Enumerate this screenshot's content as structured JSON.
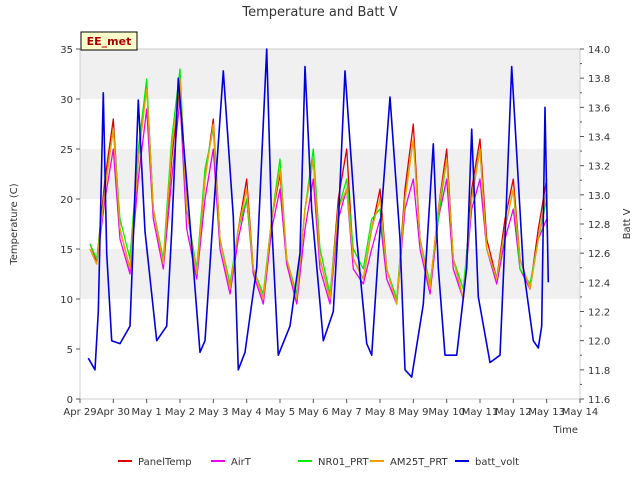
{
  "chart_data": {
    "type": "line",
    "title": "Temperature and Batt V",
    "xlabel": "Time",
    "ylabel": "Temperature (C)",
    "y2label": "Batt V",
    "station_tag": "EE_met",
    "x_ticks": [
      "Apr 29",
      "Apr 30",
      "May 1",
      "May 2",
      "May 3",
      "May 4",
      "May 5",
      "May 6",
      "May 7",
      "May 8",
      "May 9",
      "May 10",
      "May 11",
      "May 12",
      "May 13",
      "May 14"
    ],
    "xlim": [
      0,
      15
    ],
    "ylim": [
      0,
      35
    ],
    "y_ticks": [
      0,
      5,
      10,
      15,
      20,
      25,
      30,
      35
    ],
    "y2lim": [
      11.6,
      14.0
    ],
    "y2_ticks": [
      "11.6",
      "11.8",
      "12.0",
      "12.2",
      "12.4",
      "12.6",
      "12.8",
      "13.0",
      "13.2",
      "13.4",
      "13.6",
      "13.8",
      "14.0"
    ],
    "grid": "horizontal bands",
    "legend_position": "bottom",
    "series": [
      {
        "name": "PanelTemp",
        "color": "#dd0000",
        "axis": "left",
        "x": [
          0.3,
          0.5,
          0.75,
          1.0,
          1.2,
          1.5,
          1.75,
          2.0,
          2.2,
          2.5,
          2.75,
          3.0,
          3.2,
          3.5,
          3.75,
          4.0,
          4.2,
          4.5,
          4.75,
          5.0,
          5.2,
          5.5,
          5.75,
          6.0,
          6.2,
          6.5,
          6.75,
          7.0,
          7.2,
          7.5,
          7.75,
          8.0,
          8.2,
          8.5,
          8.75,
          9.0,
          9.2,
          9.5,
          9.75,
          10.0,
          10.2,
          10.5,
          10.75,
          11.0,
          11.2,
          11.5,
          11.75,
          12.0,
          12.2,
          12.5,
          12.75,
          13.0,
          13.2,
          13.5,
          13.75,
          14.0
        ],
        "y": [
          15.5,
          13.8,
          22,
          28,
          17,
          13,
          24,
          31.5,
          19,
          13.5,
          24,
          31.5,
          19,
          12.5,
          22,
          28,
          16,
          11,
          17,
          22,
          13,
          10,
          18,
          22.5,
          14,
          10,
          19,
          24,
          14,
          10,
          20,
          25,
          14,
          12,
          17,
          21,
          13,
          9.5,
          21,
          27.5,
          16,
          11,
          19,
          25,
          14,
          10,
          21,
          26,
          16,
          12,
          18,
          22,
          14,
          11,
          17,
          22
        ]
      },
      {
        "name": "AirT",
        "color": "#ee00ee",
        "axis": "left",
        "x": [
          0.3,
          0.5,
          0.75,
          1.0,
          1.2,
          1.5,
          1.75,
          2.0,
          2.2,
          2.5,
          2.75,
          3.0,
          3.2,
          3.5,
          3.75,
          4.0,
          4.2,
          4.5,
          4.75,
          5.0,
          5.2,
          5.5,
          5.75,
          6.0,
          6.2,
          6.5,
          6.75,
          7.0,
          7.2,
          7.5,
          7.75,
          8.0,
          8.2,
          8.5,
          8.75,
          9.0,
          9.2,
          9.5,
          9.75,
          10.0,
          10.2,
          10.5,
          10.75,
          11.0,
          11.2,
          11.5,
          11.75,
          12.0,
          12.2,
          12.5,
          12.75,
          13.0,
          13.2,
          13.5,
          13.75,
          14.0
        ],
        "y": [
          15,
          13.5,
          20,
          25,
          16,
          12.5,
          22,
          29,
          18,
          13,
          22,
          30,
          17,
          12,
          20,
          25,
          15,
          10.5,
          16,
          20,
          12.5,
          9.5,
          17,
          21,
          13.5,
          9.5,
          17,
          22,
          13,
          9.5,
          18,
          21,
          13,
          11.5,
          15,
          18,
          12,
          9.5,
          19,
          22,
          15,
          10.5,
          18,
          22,
          13,
          10,
          19,
          22,
          15,
          11.5,
          16,
          19,
          13,
          11,
          16,
          18
        ]
      },
      {
        "name": "NR01_PRT",
        "color": "#00ee00",
        "axis": "left",
        "x": [
          0.3,
          0.5,
          0.75,
          1.0,
          1.2,
          1.5,
          1.75,
          2.0,
          2.2,
          2.5,
          2.75,
          3.0,
          3.2,
          3.5,
          3.75,
          4.0,
          4.2,
          4.5,
          4.75,
          5.0,
          5.2,
          5.5,
          5.75,
          6.0,
          6.2,
          6.5,
          6.75,
          7.0,
          7.2,
          7.5,
          7.75,
          8.0,
          8.2,
          8.5,
          8.75,
          9.0,
          9.2,
          9.5,
          9.75,
          10.0,
          10.2,
          10.5,
          10.75,
          11.0,
          11.2,
          11.5,
          11.75,
          12.0,
          12.2,
          12.5,
          12.75,
          13.0,
          13.2,
          13.5,
          13.75,
          14.0
        ],
        "y": [
          15.5,
          14,
          21,
          27,
          18,
          14,
          25,
          32,
          19,
          14,
          26,
          33,
          19,
          13,
          23,
          27,
          16,
          11.5,
          17,
          20,
          13,
          10.5,
          18,
          24,
          14,
          10.5,
          19,
          25,
          15,
          10.5,
          19,
          22,
          15,
          13,
          18,
          19,
          13,
          10,
          20,
          26,
          16,
          11.5,
          18,
          24,
          14,
          11,
          20,
          25,
          15,
          12,
          17,
          21,
          13,
          11.5,
          16,
          20
        ]
      },
      {
        "name": "AM25T_PRT",
        "color": "#eea000",
        "axis": "left",
        "x": [
          0.3,
          0.5,
          0.75,
          1.0,
          1.2,
          1.5,
          1.75,
          2.0,
          2.2,
          2.5,
          2.75,
          3.0,
          3.2,
          3.5,
          3.75,
          4.0,
          4.2,
          4.5,
          4.75,
          5.0,
          5.2,
          5.5,
          5.75,
          6.0,
          6.2,
          6.5,
          6.75,
          7.0,
          7.2,
          7.5,
          7.75,
          8.0,
          8.2,
          8.5,
          8.75,
          9.0,
          9.2,
          9.5,
          9.75,
          10.0,
          10.2,
          10.5,
          10.75,
          11.0,
          11.2,
          11.5,
          11.75,
          12.0,
          12.2,
          12.5,
          12.75,
          13.0,
          13.2,
          13.5,
          13.75,
          14.0
        ],
        "y": [
          15,
          13.5,
          21,
          27,
          17,
          13,
          24,
          31,
          19,
          13.5,
          25,
          32,
          19,
          12.5,
          22,
          27.5,
          16,
          11,
          17,
          21,
          13,
          10,
          18,
          23,
          14,
          10,
          19,
          24,
          14,
          10,
          19,
          21,
          14,
          12,
          17,
          20,
          13,
          9.5,
          20,
          26,
          16,
          11,
          19,
          24,
          14,
          10,
          20,
          25,
          15,
          12,
          17,
          21,
          14,
          11,
          16,
          21
        ]
      },
      {
        "name": "batt_volt",
        "color": "#0000dd",
        "axis": "right",
        "x": [
          0.25,
          0.45,
          0.55,
          0.7,
          0.8,
          0.95,
          1.2,
          1.5,
          1.6,
          1.75,
          1.95,
          2.3,
          2.6,
          2.75,
          2.95,
          3.3,
          3.6,
          3.75,
          3.95,
          4.3,
          4.6,
          4.75,
          4.95,
          5.3,
          5.6,
          5.75,
          5.95,
          6.3,
          6.6,
          6.75,
          6.95,
          7.3,
          7.6,
          7.75,
          7.95,
          8.3,
          8.6,
          8.75,
          8.95,
          9.3,
          9.6,
          9.75,
          9.95,
          10.3,
          10.6,
          10.75,
          10.95,
          11.3,
          11.6,
          11.75,
          11.95,
          12.3,
          12.6,
          12.75,
          12.95,
          13.3,
          13.6,
          13.75,
          13.85,
          13.95,
          14.05
        ],
        "y": [
          11.88,
          11.8,
          12.2,
          13.7,
          12.6,
          12.0,
          11.98,
          12.1,
          12.7,
          13.65,
          12.75,
          12.0,
          12.1,
          12.75,
          13.8,
          12.8,
          11.92,
          12.0,
          12.7,
          13.85,
          12.85,
          11.8,
          11.92,
          12.5,
          14.0,
          12.8,
          11.9,
          12.1,
          12.6,
          13.88,
          12.9,
          12.0,
          12.2,
          12.8,
          13.85,
          12.7,
          11.98,
          11.9,
          12.6,
          13.67,
          12.7,
          11.8,
          11.75,
          12.25,
          13.35,
          12.5,
          11.9,
          11.9,
          12.5,
          13.45,
          12.3,
          11.85,
          11.9,
          12.7,
          13.88,
          12.5,
          12.0,
          11.95,
          12.1,
          13.6,
          12.4
        ]
      }
    ]
  }
}
